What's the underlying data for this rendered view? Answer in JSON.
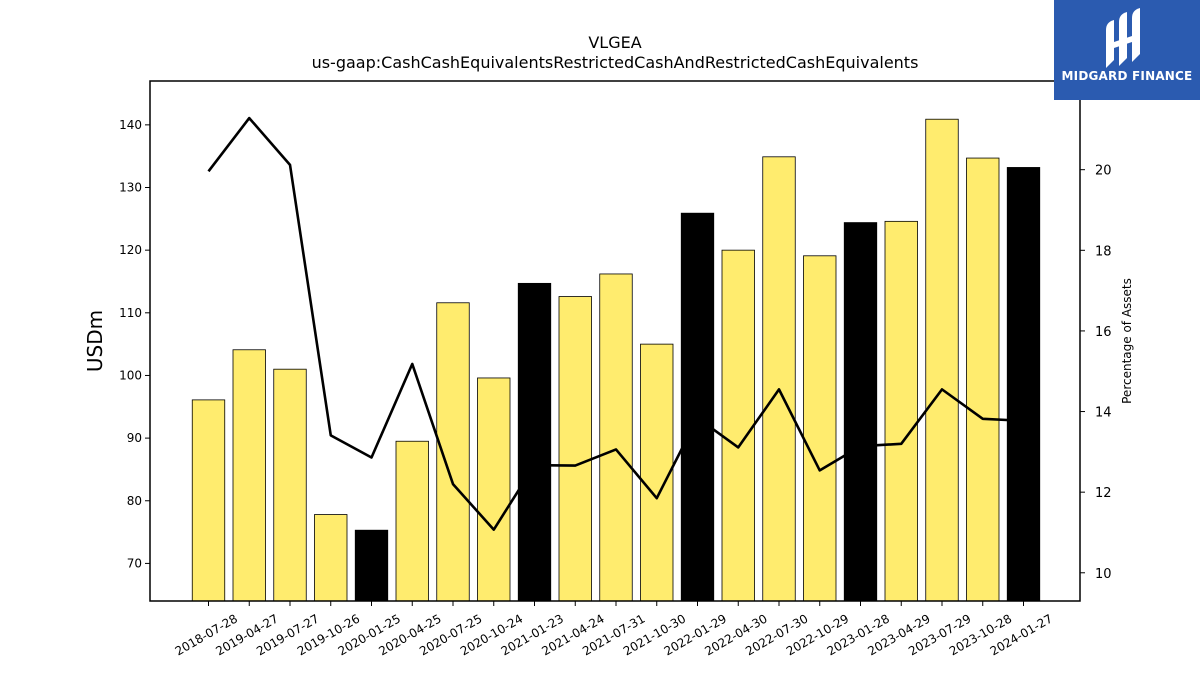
{
  "chart_data": {
    "type": "bar",
    "title": "VLGEA",
    "subtitle": "us-gaap:CashCashEquivalentsRestrictedCashAndRestrictedCashEquivalents",
    "ylabel": "USDm",
    "y2label": "Percentage of Assets",
    "categories": [
      "2018-07-28",
      "2019-04-27",
      "2019-07-27",
      "2019-10-26",
      "2020-01-25",
      "2020-04-25",
      "2020-07-25",
      "2020-10-24",
      "2021-01-23",
      "2021-04-24",
      "2021-07-31",
      "2021-10-30",
      "2022-01-29",
      "2022-04-30",
      "2022-07-30",
      "2022-10-29",
      "2023-01-28",
      "2023-04-29",
      "2023-07-29",
      "2023-10-28",
      "2024-01-27"
    ],
    "series": [
      {
        "type": "bar",
        "values": [
          96.1,
          104.1,
          101.0,
          77.8,
          75.3,
          89.5,
          111.6,
          99.6,
          114.7,
          112.6,
          116.2,
          105.0,
          125.9,
          120.0,
          134.9,
          119.1,
          124.4,
          124.6,
          140.9,
          134.7,
          133.2
        ],
        "colors": [
          "#ffec6e",
          "#ffec6e",
          "#ffec6e",
          "#ffec6e",
          "#000000",
          "#ffec6e",
          "#ffec6e",
          "#ffec6e",
          "#000000",
          "#ffec6e",
          "#ffec6e",
          "#ffec6e",
          "#000000",
          "#ffec6e",
          "#ffec6e",
          "#ffec6e",
          "#000000",
          "#ffec6e",
          "#ffec6e",
          "#ffec6e",
          "#000000"
        ]
      },
      {
        "type": "line",
        "axis": "right",
        "color": "#000000",
        "values": [
          19.96,
          21.28,
          20.12,
          13.41,
          12.86,
          15.18,
          12.2,
          11.07,
          12.67,
          12.66,
          13.06,
          11.85,
          13.84,
          13.11,
          14.55,
          12.54,
          13.14,
          13.2,
          14.55,
          13.82,
          13.77
        ]
      }
    ],
    "yticks": [
      70,
      80,
      90,
      100,
      110,
      120,
      130,
      140
    ],
    "ylim": [
      64,
      147
    ],
    "y2ticks": [
      10,
      12,
      14,
      16,
      18,
      20
    ],
    "y2lim": [
      9.3,
      22.2
    ],
    "grid": false,
    "colors": {
      "primary_bar": "#ffec6e",
      "highlight_bar": "#000000",
      "line": "#000000"
    }
  },
  "logo": {
    "text": "MIDGARD FINANCE",
    "background": "#2b5bb0",
    "icon": "midgard-logo-icon"
  }
}
